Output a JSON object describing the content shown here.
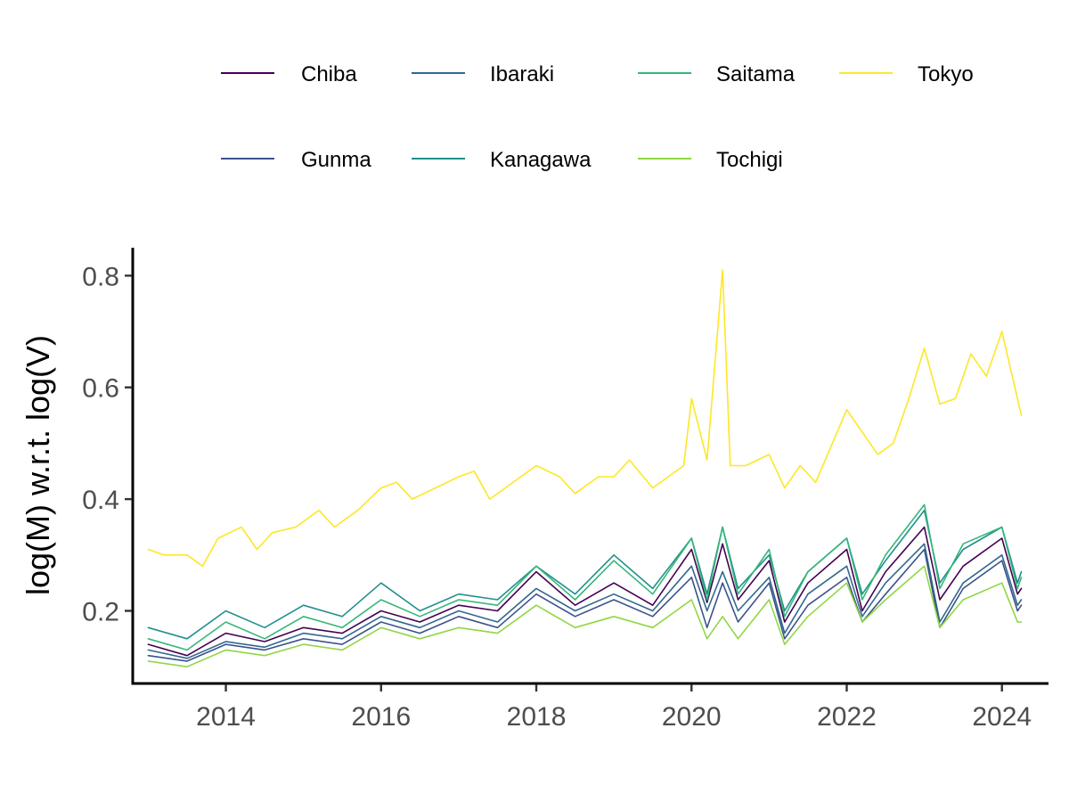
{
  "chart_data": {
    "type": "line",
    "xlabel": "",
    "ylabel": "log(M) w.r.t. log(V)",
    "xlim": [
      2012.8,
      2024.6
    ],
    "ylim": [
      0.07,
      0.85
    ],
    "x_ticks": [
      2014,
      2016,
      2018,
      2020,
      2022,
      2024
    ],
    "x_tick_labels": [
      "2014",
      "2016",
      "2018",
      "2020",
      "2022",
      "2024"
    ],
    "y_ticks": [
      0.2,
      0.4,
      0.6,
      0.8
    ],
    "y_tick_labels": [
      "0.2",
      "0.4",
      "0.6",
      "0.8"
    ],
    "grid": false,
    "legend_position": "top",
    "series": [
      {
        "name": "Chiba",
        "color": "#440154",
        "points": [
          [
            2013.0,
            0.14
          ],
          [
            2013.5,
            0.12
          ],
          [
            2014.0,
            0.16
          ],
          [
            2014.5,
            0.145
          ],
          [
            2015.0,
            0.17
          ],
          [
            2015.5,
            0.16
          ],
          [
            2016.0,
            0.2
          ],
          [
            2016.5,
            0.18
          ],
          [
            2017.0,
            0.21
          ],
          [
            2017.5,
            0.2
          ],
          [
            2018.0,
            0.27
          ],
          [
            2018.5,
            0.21
          ],
          [
            2019.0,
            0.25
          ],
          [
            2019.5,
            0.21
          ],
          [
            2020.0,
            0.31
          ],
          [
            2020.2,
            0.215
          ],
          [
            2020.4,
            0.32
          ],
          [
            2020.6,
            0.22
          ],
          [
            2021.0,
            0.29
          ],
          [
            2021.2,
            0.18
          ],
          [
            2021.5,
            0.25
          ],
          [
            2022.0,
            0.31
          ],
          [
            2022.2,
            0.2
          ],
          [
            2022.5,
            0.27
          ],
          [
            2023.0,
            0.35
          ],
          [
            2023.2,
            0.22
          ],
          [
            2023.5,
            0.28
          ],
          [
            2024.0,
            0.33
          ],
          [
            2024.2,
            0.23
          ],
          [
            2024.25,
            0.24
          ]
        ]
      },
      {
        "name": "Gunma",
        "color": "#3b528b",
        "points": [
          [
            2013.0,
            0.12
          ],
          [
            2013.5,
            0.11
          ],
          [
            2014.0,
            0.14
          ],
          [
            2014.5,
            0.13
          ],
          [
            2015.0,
            0.15
          ],
          [
            2015.5,
            0.14
          ],
          [
            2016.0,
            0.18
          ],
          [
            2016.5,
            0.16
          ],
          [
            2017.0,
            0.19
          ],
          [
            2017.5,
            0.17
          ],
          [
            2018.0,
            0.23
          ],
          [
            2018.5,
            0.19
          ],
          [
            2019.0,
            0.22
          ],
          [
            2019.5,
            0.19
          ],
          [
            2020.0,
            0.26
          ],
          [
            2020.2,
            0.17
          ],
          [
            2020.4,
            0.25
          ],
          [
            2020.6,
            0.18
          ],
          [
            2021.0,
            0.25
          ],
          [
            2021.2,
            0.15
          ],
          [
            2021.5,
            0.21
          ],
          [
            2022.0,
            0.26
          ],
          [
            2022.2,
            0.18
          ],
          [
            2022.5,
            0.23
          ],
          [
            2023.0,
            0.31
          ],
          [
            2023.2,
            0.17
          ],
          [
            2023.5,
            0.24
          ],
          [
            2024.0,
            0.29
          ],
          [
            2024.2,
            0.2
          ],
          [
            2024.25,
            0.21
          ]
        ]
      },
      {
        "name": "Ibaraki",
        "color": "#31688e",
        "points": [
          [
            2013.0,
            0.13
          ],
          [
            2013.5,
            0.115
          ],
          [
            2014.0,
            0.145
          ],
          [
            2014.5,
            0.135
          ],
          [
            2015.0,
            0.16
          ],
          [
            2015.5,
            0.15
          ],
          [
            2016.0,
            0.19
          ],
          [
            2016.5,
            0.17
          ],
          [
            2017.0,
            0.2
          ],
          [
            2017.5,
            0.18
          ],
          [
            2018.0,
            0.24
          ],
          [
            2018.5,
            0.2
          ],
          [
            2019.0,
            0.23
          ],
          [
            2019.5,
            0.2
          ],
          [
            2020.0,
            0.28
          ],
          [
            2020.2,
            0.2
          ],
          [
            2020.4,
            0.27
          ],
          [
            2020.6,
            0.2
          ],
          [
            2021.0,
            0.26
          ],
          [
            2021.2,
            0.16
          ],
          [
            2021.5,
            0.23
          ],
          [
            2022.0,
            0.28
          ],
          [
            2022.2,
            0.19
          ],
          [
            2022.5,
            0.25
          ],
          [
            2023.0,
            0.32
          ],
          [
            2023.2,
            0.18
          ],
          [
            2023.5,
            0.25
          ],
          [
            2024.0,
            0.3
          ],
          [
            2024.2,
            0.21
          ],
          [
            2024.25,
            0.22
          ]
        ]
      },
      {
        "name": "Kanagawa",
        "color": "#21908d",
        "points": [
          [
            2013.0,
            0.17
          ],
          [
            2013.5,
            0.15
          ],
          [
            2014.0,
            0.2
          ],
          [
            2014.5,
            0.17
          ],
          [
            2015.0,
            0.21
          ],
          [
            2015.5,
            0.19
          ],
          [
            2016.0,
            0.25
          ],
          [
            2016.5,
            0.2
          ],
          [
            2017.0,
            0.23
          ],
          [
            2017.5,
            0.22
          ],
          [
            2018.0,
            0.28
          ],
          [
            2018.5,
            0.23
          ],
          [
            2019.0,
            0.3
          ],
          [
            2019.5,
            0.24
          ],
          [
            2020.0,
            0.33
          ],
          [
            2020.2,
            0.23
          ],
          [
            2020.4,
            0.35
          ],
          [
            2020.6,
            0.24
          ],
          [
            2021.0,
            0.3
          ],
          [
            2021.2,
            0.2
          ],
          [
            2021.5,
            0.27
          ],
          [
            2022.0,
            0.33
          ],
          [
            2022.2,
            0.23
          ],
          [
            2022.5,
            0.29
          ],
          [
            2023.0,
            0.38
          ],
          [
            2023.2,
            0.25
          ],
          [
            2023.5,
            0.31
          ],
          [
            2024.0,
            0.35
          ],
          [
            2024.2,
            0.25
          ],
          [
            2024.25,
            0.27
          ]
        ]
      },
      {
        "name": "Saitama",
        "color": "#35b779",
        "points": [
          [
            2013.0,
            0.15
          ],
          [
            2013.5,
            0.13
          ],
          [
            2014.0,
            0.18
          ],
          [
            2014.5,
            0.15
          ],
          [
            2015.0,
            0.19
          ],
          [
            2015.5,
            0.17
          ],
          [
            2016.0,
            0.22
          ],
          [
            2016.5,
            0.19
          ],
          [
            2017.0,
            0.22
          ],
          [
            2017.5,
            0.21
          ],
          [
            2018.0,
            0.28
          ],
          [
            2018.5,
            0.22
          ],
          [
            2019.0,
            0.29
          ],
          [
            2019.5,
            0.23
          ],
          [
            2020.0,
            0.33
          ],
          [
            2020.2,
            0.22
          ],
          [
            2020.4,
            0.35
          ],
          [
            2020.6,
            0.23
          ],
          [
            2021.0,
            0.31
          ],
          [
            2021.2,
            0.19
          ],
          [
            2021.5,
            0.27
          ],
          [
            2022.0,
            0.33
          ],
          [
            2022.2,
            0.22
          ],
          [
            2022.5,
            0.3
          ],
          [
            2023.0,
            0.39
          ],
          [
            2023.2,
            0.24
          ],
          [
            2023.5,
            0.32
          ],
          [
            2024.0,
            0.35
          ],
          [
            2024.2,
            0.24
          ],
          [
            2024.25,
            0.26
          ]
        ]
      },
      {
        "name": "Tochigi",
        "color": "#8fd744",
        "points": [
          [
            2013.0,
            0.11
          ],
          [
            2013.5,
            0.1
          ],
          [
            2014.0,
            0.13
          ],
          [
            2014.5,
            0.12
          ],
          [
            2015.0,
            0.14
          ],
          [
            2015.5,
            0.13
          ],
          [
            2016.0,
            0.17
          ],
          [
            2016.5,
            0.15
          ],
          [
            2017.0,
            0.17
          ],
          [
            2017.5,
            0.16
          ],
          [
            2018.0,
            0.21
          ],
          [
            2018.5,
            0.17
          ],
          [
            2019.0,
            0.19
          ],
          [
            2019.5,
            0.17
          ],
          [
            2020.0,
            0.22
          ],
          [
            2020.2,
            0.15
          ],
          [
            2020.4,
            0.19
          ],
          [
            2020.6,
            0.15
          ],
          [
            2021.0,
            0.22
          ],
          [
            2021.2,
            0.14
          ],
          [
            2021.5,
            0.19
          ],
          [
            2022.0,
            0.25
          ],
          [
            2022.2,
            0.18
          ],
          [
            2022.5,
            0.22
          ],
          [
            2023.0,
            0.28
          ],
          [
            2023.2,
            0.17
          ],
          [
            2023.5,
            0.22
          ],
          [
            2024.0,
            0.25
          ],
          [
            2024.2,
            0.18
          ],
          [
            2024.25,
            0.18
          ]
        ]
      },
      {
        "name": "Tokyo",
        "color": "#fde725",
        "points": [
          [
            2013.0,
            0.31
          ],
          [
            2013.2,
            0.3
          ],
          [
            2013.5,
            0.3
          ],
          [
            2013.7,
            0.28
          ],
          [
            2013.9,
            0.33
          ],
          [
            2014.2,
            0.35
          ],
          [
            2014.4,
            0.31
          ],
          [
            2014.6,
            0.34
          ],
          [
            2014.9,
            0.35
          ],
          [
            2015.2,
            0.38
          ],
          [
            2015.4,
            0.35
          ],
          [
            2015.7,
            0.38
          ],
          [
            2016.0,
            0.42
          ],
          [
            2016.2,
            0.43
          ],
          [
            2016.4,
            0.4
          ],
          [
            2016.7,
            0.42
          ],
          [
            2017.0,
            0.44
          ],
          [
            2017.2,
            0.45
          ],
          [
            2017.4,
            0.4
          ],
          [
            2017.6,
            0.42
          ],
          [
            2018.0,
            0.46
          ],
          [
            2018.3,
            0.44
          ],
          [
            2018.5,
            0.41
          ],
          [
            2018.8,
            0.44
          ],
          [
            2019.0,
            0.44
          ],
          [
            2019.2,
            0.47
          ],
          [
            2019.5,
            0.42
          ],
          [
            2019.7,
            0.44
          ],
          [
            2019.9,
            0.46
          ],
          [
            2020.0,
            0.58
          ],
          [
            2020.2,
            0.47
          ],
          [
            2020.4,
            0.81
          ],
          [
            2020.5,
            0.46
          ],
          [
            2020.7,
            0.46
          ],
          [
            2021.0,
            0.48
          ],
          [
            2021.2,
            0.42
          ],
          [
            2021.4,
            0.46
          ],
          [
            2021.6,
            0.43
          ],
          [
            2022.0,
            0.56
          ],
          [
            2022.2,
            0.52
          ],
          [
            2022.4,
            0.48
          ],
          [
            2022.6,
            0.5
          ],
          [
            2022.8,
            0.58
          ],
          [
            2023.0,
            0.67
          ],
          [
            2023.2,
            0.57
          ],
          [
            2023.4,
            0.58
          ],
          [
            2023.6,
            0.66
          ],
          [
            2023.8,
            0.62
          ],
          [
            2024.0,
            0.7
          ],
          [
            2024.25,
            0.55
          ]
        ]
      }
    ]
  }
}
